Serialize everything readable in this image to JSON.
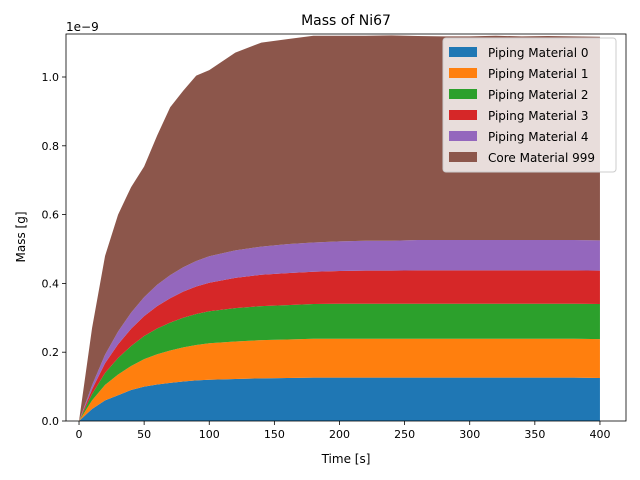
{
  "chart_data": {
    "type": "area",
    "stacked": true,
    "title": "Mass of Ni67",
    "xlabel": "Time [s]",
    "ylabel": "Mass [g]",
    "y_multiplier_label": "1e−9",
    "xlim": [
      -10,
      420
    ],
    "ylim": [
      0,
      1.125
    ],
    "xticks": [
      0,
      50,
      100,
      150,
      200,
      250,
      300,
      350,
      400
    ],
    "yticks": [
      0.0,
      0.2,
      0.4,
      0.6,
      0.8,
      1.0
    ],
    "legend_position": "top-right",
    "x": [
      0,
      10,
      20,
      30,
      40,
      50,
      60,
      70,
      80,
      90,
      100,
      120,
      140,
      160,
      180,
      200,
      220,
      240,
      260,
      280,
      300,
      320,
      340,
      360,
      380,
      400
    ],
    "series": [
      {
        "name": "Piping Material 0",
        "color": "#1f77b4",
        "values": [
          0.0,
          0.035,
          0.06,
          0.075,
          0.09,
          0.1,
          0.106,
          0.111,
          0.115,
          0.118,
          0.12,
          0.122,
          0.124,
          0.125,
          0.126,
          0.126,
          0.126,
          0.126,
          0.126,
          0.126,
          0.126,
          0.126,
          0.126,
          0.126,
          0.126,
          0.125
        ]
      },
      {
        "name": "Piping Material 1",
        "color": "#ff7f0e",
        "values": [
          0.0,
          0.025,
          0.045,
          0.06,
          0.07,
          0.08,
          0.088,
          0.094,
          0.099,
          0.103,
          0.106,
          0.109,
          0.111,
          0.112,
          0.113,
          0.113,
          0.113,
          0.113,
          0.113,
          0.113,
          0.113,
          0.113,
          0.113,
          0.113,
          0.113,
          0.113
        ]
      },
      {
        "name": "Piping Material 2",
        "color": "#2ca02c",
        "values": [
          0.0,
          0.018,
          0.035,
          0.048,
          0.058,
          0.067,
          0.075,
          0.081,
          0.086,
          0.09,
          0.093,
          0.097,
          0.099,
          0.1,
          0.101,
          0.102,
          0.102,
          0.102,
          0.102,
          0.102,
          0.102,
          0.102,
          0.102,
          0.102,
          0.102,
          0.102
        ]
      },
      {
        "name": "Piping Material 3",
        "color": "#d62728",
        "values": [
          0.0,
          0.014,
          0.028,
          0.04,
          0.05,
          0.058,
          0.065,
          0.071,
          0.076,
          0.08,
          0.083,
          0.088,
          0.091,
          0.093,
          0.094,
          0.095,
          0.096,
          0.096,
          0.097,
          0.097,
          0.097,
          0.097,
          0.097,
          0.097,
          0.097,
          0.097
        ]
      },
      {
        "name": "Piping Material 4",
        "color": "#9467bd",
        "values": [
          0.0,
          0.012,
          0.025,
          0.037,
          0.047,
          0.055,
          0.062,
          0.067,
          0.071,
          0.074,
          0.077,
          0.08,
          0.082,
          0.084,
          0.085,
          0.086,
          0.087,
          0.087,
          0.088,
          0.088,
          0.088,
          0.088,
          0.088,
          0.088,
          0.088,
          0.088
        ]
      },
      {
        "name": "Core Material 999",
        "color": "#8c564b",
        "values": [
          0.0,
          0.166,
          0.287,
          0.34,
          0.365,
          0.38,
          0.434,
          0.488,
          0.513,
          0.539,
          0.541,
          0.575,
          0.593,
          0.596,
          0.601,
          0.598,
          0.596,
          0.597,
          0.593,
          0.592,
          0.592,
          0.594,
          0.592,
          0.593,
          0.592,
          0.592
        ]
      }
    ]
  }
}
